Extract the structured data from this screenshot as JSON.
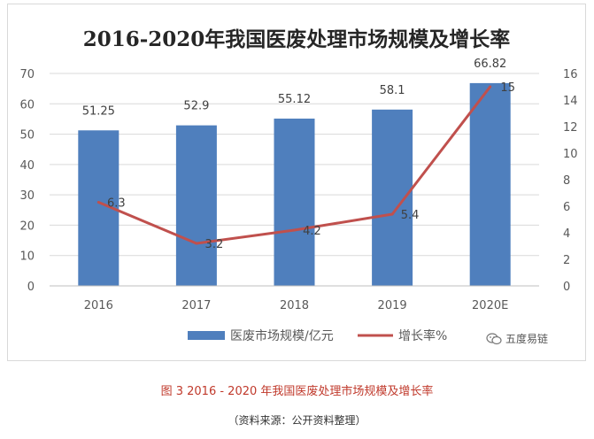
{
  "chart_data": {
    "type": "bar",
    "title": "2016-2020年我国医废处理市场规模及增长率",
    "categories": [
      "2016",
      "2017",
      "2018",
      "2019",
      "2020E"
    ],
    "series": [
      {
        "name": "医废市场规模/亿元",
        "kind": "bar",
        "axis": "left",
        "values": [
          51.25,
          52.9,
          55.12,
          58.1,
          66.82
        ],
        "labels": [
          "51.25",
          "52.9",
          "55.12",
          "58.1",
          "66.82"
        ]
      },
      {
        "name": "增长率%",
        "kind": "line",
        "axis": "right",
        "values": [
          6.3,
          3.2,
          4.2,
          5.4,
          15
        ],
        "labels": [
          "6.3",
          "3.2",
          "4.2",
          "5.4",
          "15"
        ]
      }
    ],
    "ylim_left": [
      0,
      70
    ],
    "yticks_left": [
      0,
      10,
      20,
      30,
      40,
      50,
      60,
      70
    ],
    "ylim_right": [
      0,
      16
    ],
    "yticks_right": [
      0,
      2,
      4,
      6,
      8,
      10,
      12,
      14,
      16
    ],
    "grid": true,
    "legend_position": "bottom",
    "colors": {
      "bar": "#4f7fbd",
      "line": "#c0504d",
      "grid": "#d9d9d9",
      "text": "#595959",
      "title": "#262626"
    }
  },
  "caption": "图 3 2016 - 2020 年我国医废处理市场规模及增长率",
  "source_note": "（资料来源：公开资料整理）",
  "watermark": {
    "text": "五度易链",
    "icon": "wechat-logo-icon"
  }
}
